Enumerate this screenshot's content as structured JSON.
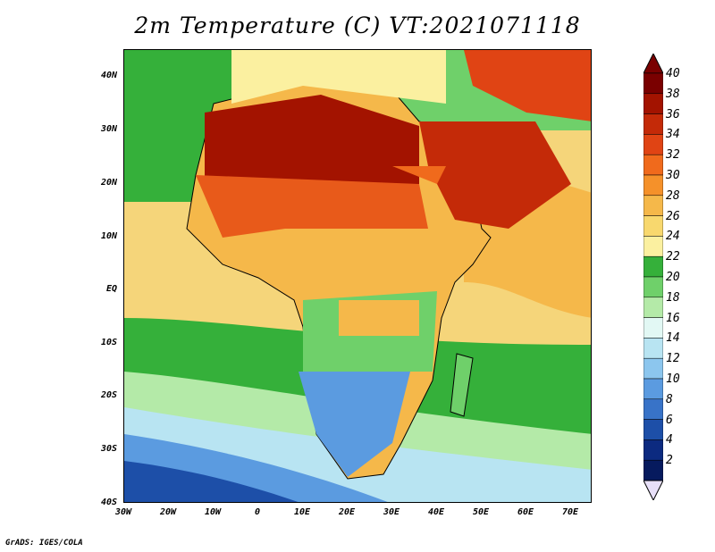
{
  "title": "2m Temperature (C) VT:2021071118",
  "credit": "GrADS: IGES/COLA",
  "map": {
    "lat_labels": [
      "40N",
      "30N",
      "20N",
      "10N",
      "EQ",
      "10S",
      "20S",
      "30S",
      "40S"
    ],
    "lon_labels": [
      "30W",
      "20W",
      "10W",
      "0",
      "10E",
      "20E",
      "30E",
      "40E",
      "50E",
      "60E",
      "70E"
    ],
    "lat_range": [
      -40,
      45
    ],
    "lon_range": [
      -30,
      75
    ],
    "ocean_color": "#f5d57a",
    "regions": [
      {
        "name": "sahara-hot-core",
        "color": "#a31300"
      },
      {
        "name": "sahel-hot",
        "color": "#e85a1a"
      },
      {
        "name": "arabia-hot",
        "color": "#c42a08"
      },
      {
        "name": "equatorial-warm",
        "color": "#f5b84a"
      },
      {
        "name": "southern-africa-cool",
        "color": "#5b9be0"
      },
      {
        "name": "south-ocean-cold",
        "color": "#1d4fa8"
      },
      {
        "name": "tropical-ocean-green",
        "color": "#36b83c"
      }
    ]
  },
  "colorbar": {
    "levels": [
      "40",
      "38",
      "36",
      "34",
      "32",
      "30",
      "28",
      "26",
      "24",
      "22",
      "20",
      "18",
      "16",
      "14",
      "12",
      "10",
      "8",
      "6",
      "4",
      "2"
    ],
    "colors": [
      "#7a0000",
      "#a31300",
      "#c42a08",
      "#e04414",
      "#f06a1c",
      "#f5912a",
      "#f5b84a",
      "#f8d86e",
      "#fbf0a0",
      "#35b03a",
      "#6fd06a",
      "#b4eaa8",
      "#e2f8f4",
      "#b8e4f2",
      "#8cc6ee",
      "#5b9be0",
      "#3873c8",
      "#1d4fa8",
      "#0c2a80",
      "#061a5e"
    ],
    "top_color": "#7a0000",
    "bottom_color": "#e8e0f8"
  }
}
